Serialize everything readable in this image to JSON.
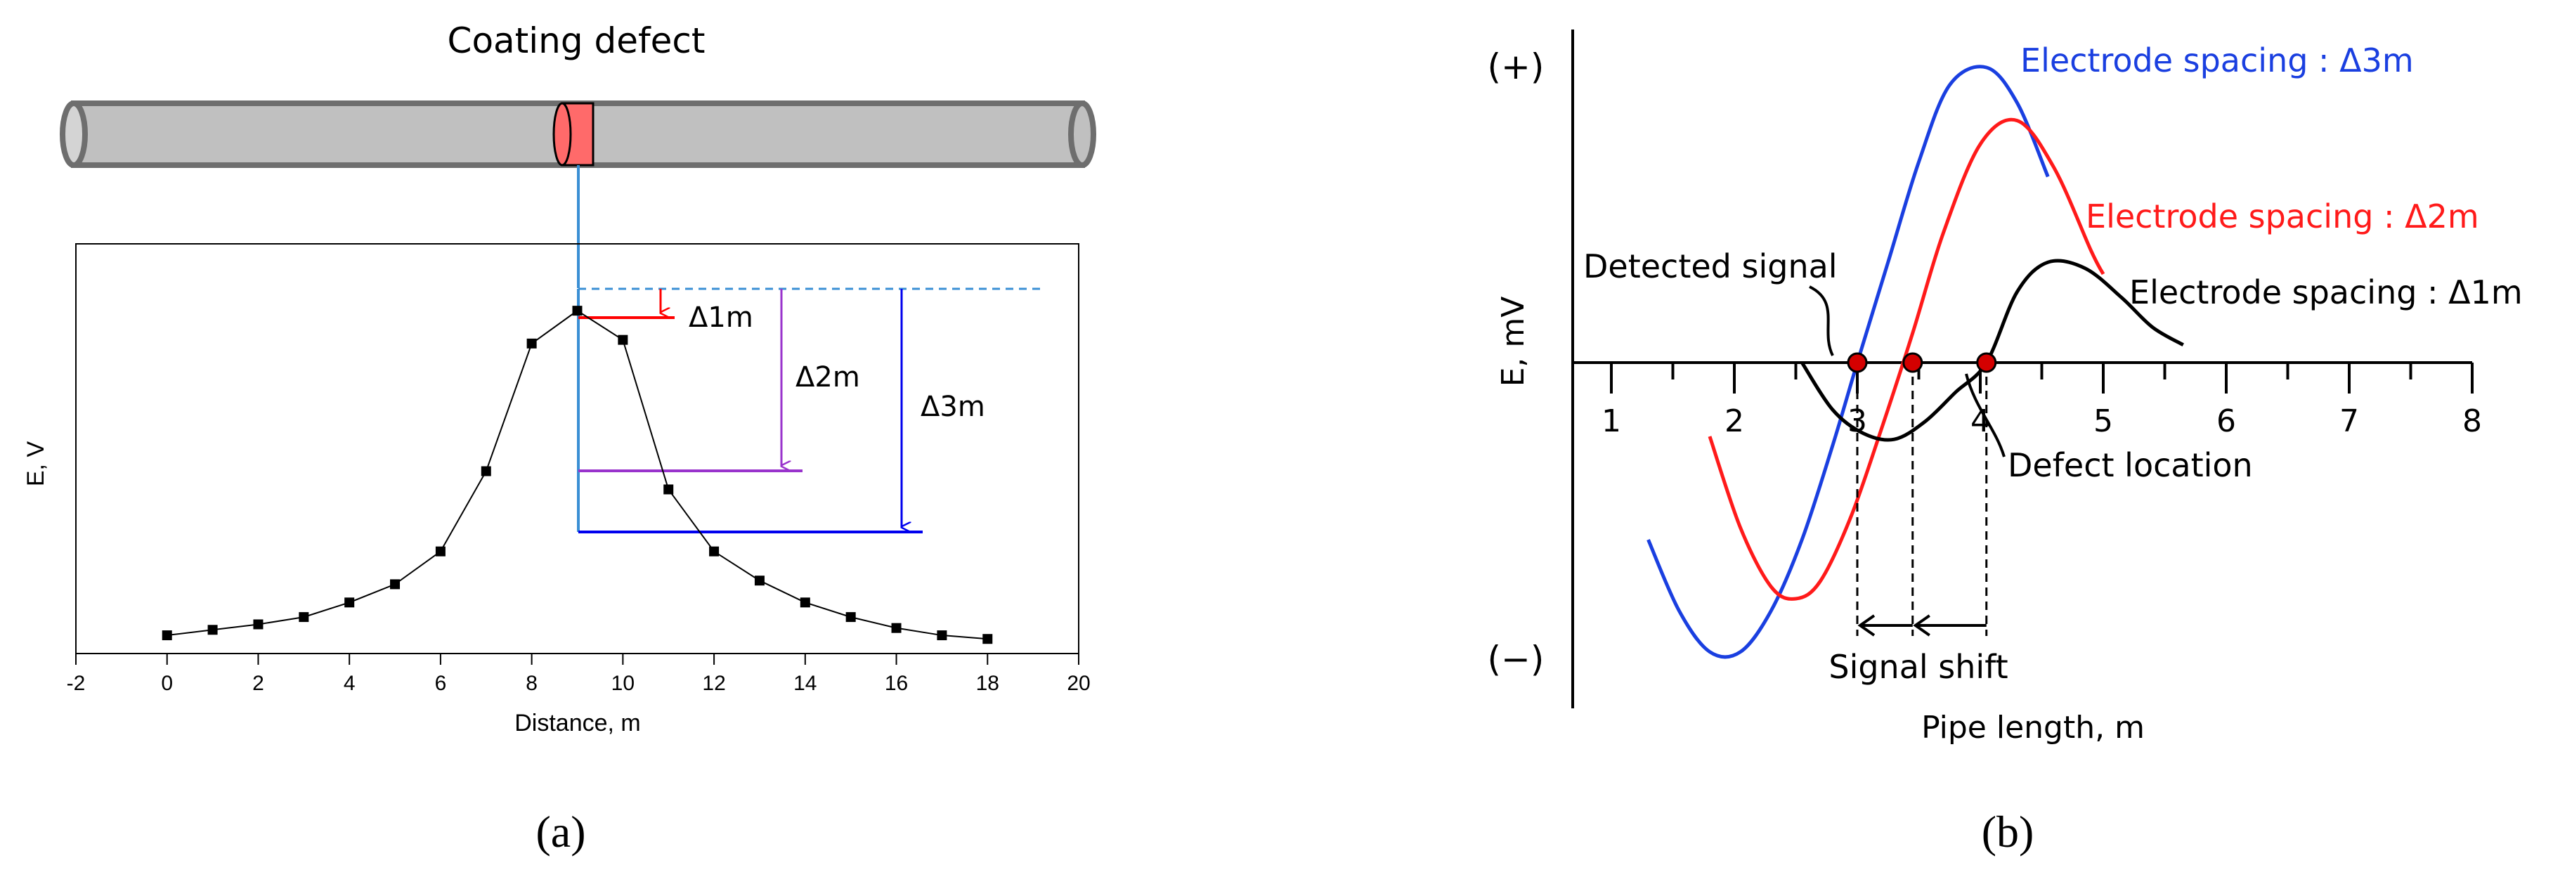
{
  "panel_a": {
    "panel_label": "(a)",
    "pipe_title": "Coating defect",
    "delta_1m": "Δ1m",
    "delta_2m": "Δ2m",
    "delta_3m": "Δ3m",
    "colors": {
      "pipe": "#c0c0c0",
      "defect": "#ff6a6a",
      "guide": "#3a8fd4",
      "d1": "#ff0000",
      "d2": "#9933cc",
      "d3": "#0000ee"
    }
  },
  "panel_b": {
    "panel_label": "(b)",
    "plus_label": "(+)",
    "minus_label": "(−)",
    "detected_signal": "Detected signal",
    "defect_location": "Defect location",
    "signal_shift": "Signal shift",
    "colors": {
      "spacing_3m": "#1a3fe0",
      "spacing_2m": "#ff1a1a",
      "spacing_1m": "#000000",
      "marker": "#d40000"
    }
  },
  "chart_data": [
    {
      "type": "line",
      "xlabel": "Distance, m",
      "ylabel": "E, V",
      "xlim": [
        -2,
        20
      ],
      "x_ticks": [
        "-2",
        "0",
        "2",
        "4",
        "6",
        "8",
        "10",
        "12",
        "14",
        "16",
        "18",
        "20"
      ],
      "grid": false,
      "series": [
        {
          "x": [
            0,
            1,
            2,
            3,
            4,
            5,
            6,
            7,
            8,
            9,
            10,
            11,
            12,
            13,
            14,
            15,
            16,
            17,
            18
          ],
          "values": [
            0.05,
            0.065,
            0.08,
            0.1,
            0.14,
            0.19,
            0.28,
            0.5,
            0.85,
            0.94,
            0.86,
            0.45,
            0.28,
            0.2,
            0.14,
            0.1,
            0.07,
            0.05,
            0.04
          ]
        }
      ]
    },
    {
      "type": "line",
      "xlabel": "Pipe length, m",
      "ylabel": "E, mV",
      "xlim": [
        1,
        8
      ],
      "x_ticks": [
        "1",
        "2",
        "3",
        "4",
        "5",
        "6",
        "7",
        "8"
      ],
      "grid": false,
      "series": [
        {
          "name": "Electrode spacing : Δ3m",
          "x": [
            1.3,
            1.55,
            1.8,
            2.05,
            2.3,
            2.55,
            2.8,
            3.0,
            3.25,
            3.5,
            3.75,
            4.05,
            4.3,
            4.55
          ],
          "values": [
            -0.6,
            -0.84,
            -0.98,
            -0.98,
            -0.84,
            -0.6,
            -0.28,
            0.0,
            0.34,
            0.68,
            0.94,
            1.0,
            0.88,
            0.63
          ]
        },
        {
          "name": "Electrode spacing : Δ2m",
          "x": [
            1.8,
            2.05,
            2.3,
            2.5,
            2.7,
            2.95,
            3.2,
            3.45,
            3.7,
            4.0,
            4.3,
            4.6,
            4.9,
            5.0
          ],
          "values": [
            -0.25,
            -0.56,
            -0.76,
            -0.8,
            -0.74,
            -0.52,
            -0.22,
            0.1,
            0.44,
            0.74,
            0.82,
            0.66,
            0.38,
            0.3
          ]
        },
        {
          "name": "Electrode spacing : Δ1m",
          "x": [
            2.55,
            2.8,
            3.05,
            3.3,
            3.55,
            3.8,
            4.05,
            4.3,
            4.55,
            4.85,
            5.15,
            5.4,
            5.65
          ],
          "values": [
            0.0,
            -0.16,
            -0.24,
            -0.26,
            -0.2,
            -0.1,
            0.0,
            0.24,
            0.34,
            0.32,
            0.22,
            0.12,
            0.06
          ]
        }
      ],
      "markers_x": [
        3.0,
        3.45,
        4.05
      ]
    }
  ]
}
